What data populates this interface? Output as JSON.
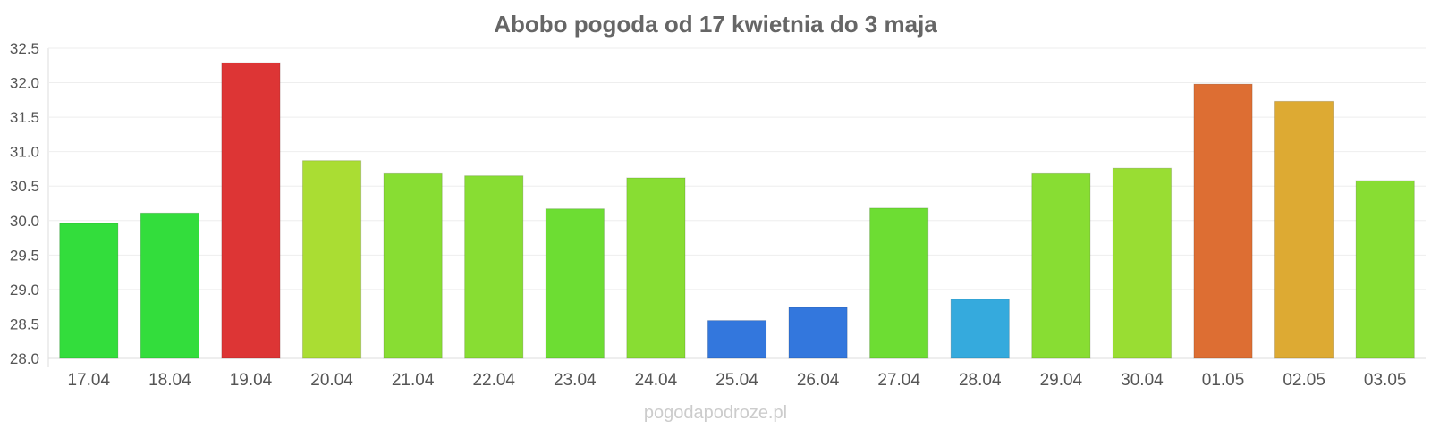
{
  "chart_data": {
    "type": "bar",
    "title": "Abobo pogoda od 17 kwietnia do 3 maja",
    "xlabel": "",
    "ylabel": "",
    "ylim": [
      28.0,
      32.5
    ],
    "yticks": [
      "28.0",
      "28.5",
      "29.0",
      "29.5",
      "30.0",
      "30.5",
      "31.0",
      "31.5",
      "32.0",
      "32.5"
    ],
    "grid": true,
    "categories": [
      "17.04",
      "18.04",
      "19.04",
      "20.04",
      "21.04",
      "22.04",
      "23.04",
      "24.04",
      "25.04",
      "26.04",
      "27.04",
      "28.04",
      "29.04",
      "30.04",
      "01.05",
      "02.05",
      "03.05"
    ],
    "values": [
      29.96,
      30.11,
      32.29,
      30.87,
      30.68,
      30.65,
      30.17,
      30.62,
      28.55,
      28.74,
      30.18,
      28.86,
      30.68,
      30.76,
      31.98,
      31.73,
      30.58
    ],
    "colors": [
      "#33dd3c",
      "#33dd3c",
      "#dd3535",
      "#aadd33",
      "#88dd33",
      "#88dd33",
      "#6ddd33",
      "#88dd33",
      "#3377dd",
      "#3377dd",
      "#6ddd33",
      "#35aadd",
      "#88dd33",
      "#99dd33",
      "#dd6e33",
      "#ddaa33",
      "#88dd33"
    ]
  },
  "watermark": "pogodapodroze.pl"
}
